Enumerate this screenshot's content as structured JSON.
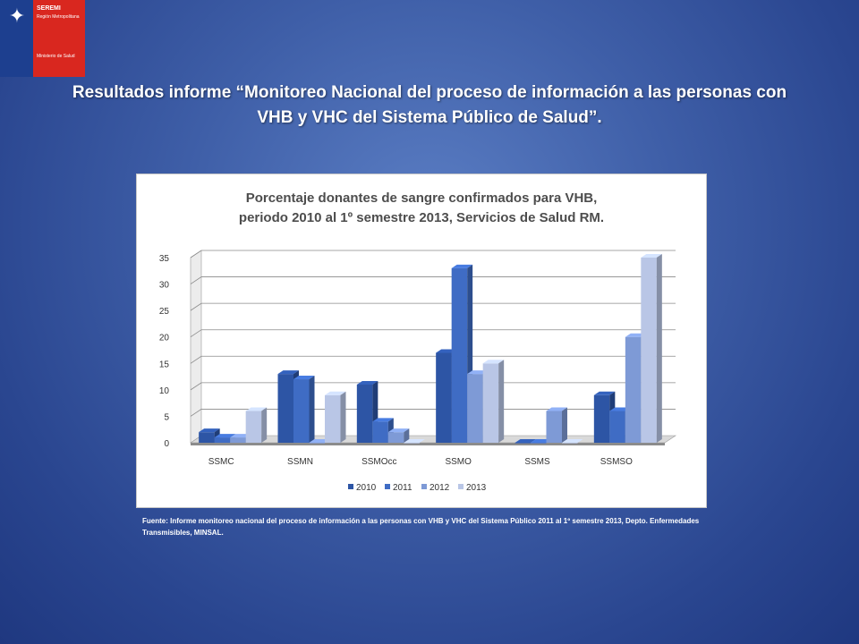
{
  "logo": {
    "org": "SEREMI",
    "region": "Región Metropolitana",
    "ministry": "Ministerio de Salud",
    "colors": {
      "blue": "#1d3f8f",
      "red": "#d9271f"
    }
  },
  "slide": {
    "title": "Resultados informe “Monitoreo Nacional del proceso de información a las personas con VHB y VHC del Sistema Público de Salud”.",
    "source": "Fuente: Informe monitoreo nacional del proceso de información a las personas con VHB y VHC del Sistema Público 2011 al 1º semestre 2013, Depto. Enfermedades Transmisibles, MINSAL."
  },
  "chart_data": {
    "type": "bar",
    "title_line1": "Porcentaje donantes de sangre confirmados  para VHB,",
    "title_line2": "periodo 2010 al 1º semestre 2013, Servicios de Salud RM.",
    "categories": [
      "SSMC",
      "SSMN",
      "SSMOcc",
      "SSMO",
      "SSMS",
      "SSMSO"
    ],
    "series": [
      {
        "name": "2010",
        "values": [
          2,
          13,
          11,
          17,
          0,
          9
        ],
        "color": "#2d55a5"
      },
      {
        "name": "2011",
        "values": [
          1,
          12,
          4,
          33,
          0,
          6
        ],
        "color": "#3f6cc4"
      },
      {
        "name": "2012",
        "values": [
          1,
          0,
          2,
          13,
          6,
          20
        ],
        "color": "#7e9ad6"
      },
      {
        "name": "2013",
        "values": [
          6,
          9,
          0,
          15,
          0,
          35
        ],
        "color": "#b9c6e6"
      }
    ],
    "ylim": [
      0,
      35
    ],
    "yticks": [
      0,
      5,
      10,
      15,
      20,
      25,
      30,
      35
    ],
    "ytick_labels": [
      "0",
      "5",
      "10",
      "15",
      "20",
      "25",
      "30",
      "35"
    ],
    "grid": true,
    "legend_position": "bottom"
  }
}
